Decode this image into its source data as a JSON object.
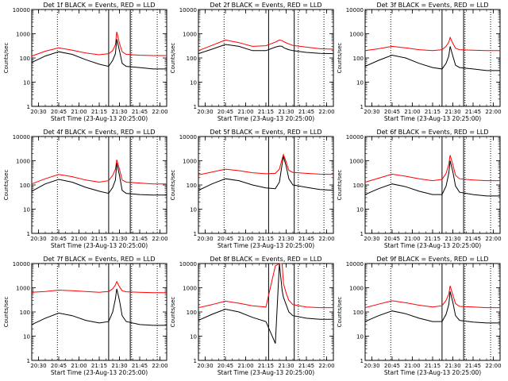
{
  "figure": {
    "x_ticks": [
      "20:30",
      "20:45",
      "21:00",
      "21:15",
      "21:30",
      "21:45",
      "22:00"
    ],
    "y_ticks": [
      "1",
      "10",
      "100",
      "1000",
      "10000"
    ],
    "x_label": "Start Time (23-Aug-13 20:25:00)",
    "y_label": "Counts/sec"
  },
  "colors": {
    "events": "#000000",
    "lld": "#ff0000",
    "background": "#ffffff"
  },
  "chart_data": [
    {
      "type": "line",
      "title": "Det 1f BLACK = Events, RED = LLD",
      "xlabel": "Start Time (23-Aug-13 20:25:00)",
      "ylabel": "Counts/sec",
      "yscale": "log",
      "ylim": [
        1,
        10000
      ],
      "x_range": [
        "20:25",
        "22:05"
      ],
      "markers": {
        "solid": [
          "21:22",
          "21:38"
        ],
        "dotted": [
          "20:44",
          "21:39",
          "21:58"
        ]
      },
      "series": [
        {
          "name": "BLACK = Events",
          "color": "#000000",
          "x": [
            "20:25",
            "20:35",
            "20:45",
            "20:55",
            "21:05",
            "21:15",
            "21:22",
            "21:25",
            "21:27",
            "21:28",
            "21:30",
            "21:32",
            "21:35",
            "21:45",
            "21:55",
            "22:05"
          ],
          "values": [
            65,
            120,
            180,
            140,
            85,
            55,
            45,
            80,
            150,
            600,
            200,
            60,
            45,
            40,
            35,
            35
          ]
        },
        {
          "name": "RED = LLD",
          "color": "#ff0000",
          "x": [
            "20:25",
            "20:35",
            "20:45",
            "20:55",
            "21:05",
            "21:15",
            "21:22",
            "21:25",
            "21:27",
            "21:28",
            "21:30",
            "21:32",
            "21:35",
            "21:45",
            "21:55",
            "22:05"
          ],
          "values": [
            120,
            190,
            260,
            210,
            160,
            135,
            150,
            200,
            350,
            1200,
            400,
            180,
            140,
            130,
            125,
            125
          ]
        }
      ]
    },
    {
      "type": "line",
      "title": "Det 2f BLACK = Events, RED = LLD",
      "xlabel": "Start Time (23-Aug-13 20:25:00)",
      "ylabel": "Counts/sec",
      "yscale": "log",
      "ylim": [
        1,
        10000
      ],
      "x_range": [
        "20:25",
        "22:05"
      ],
      "markers": {
        "solid": [
          "21:17",
          "21:36"
        ],
        "dotted": [
          "20:44",
          "21:39",
          "21:58"
        ]
      },
      "series": [
        {
          "name": "BLACK = Events",
          "color": "#000000",
          "x": [
            "20:25",
            "20:35",
            "20:45",
            "20:55",
            "21:05",
            "21:15",
            "21:22",
            "21:25",
            "21:27",
            "21:28",
            "21:30",
            "21:32",
            "21:35",
            "21:45",
            "21:55",
            "22:05"
          ],
          "values": [
            150,
            230,
            360,
            300,
            200,
            200,
            280,
            310,
            300,
            270,
            240,
            220,
            200,
            170,
            155,
            150
          ]
        },
        {
          "name": "RED = LLD",
          "color": "#ff0000",
          "x": [
            "20:25",
            "20:35",
            "20:45",
            "20:55",
            "21:05",
            "21:15",
            "21:22",
            "21:25",
            "21:27",
            "21:28",
            "21:30",
            "21:32",
            "21:35",
            "21:45",
            "21:55",
            "22:05"
          ],
          "values": [
            200,
            330,
            550,
            430,
            300,
            320,
            450,
            550,
            520,
            480,
            420,
            380,
            330,
            280,
            240,
            230
          ]
        }
      ]
    },
    {
      "type": "line",
      "title": "Det 3f BLACK = Events, RED = LLD",
      "xlabel": "Start Time (23-Aug-13 20:25:00)",
      "ylabel": "Counts/sec",
      "yscale": "log",
      "ylim": [
        1,
        10000
      ],
      "x_range": [
        "20:25",
        "22:05"
      ],
      "markers": {
        "solid": [
          "21:22",
          "21:38"
        ],
        "dotted": [
          "20:44",
          "21:39",
          "21:58"
        ]
      },
      "series": [
        {
          "name": "BLACK = Events",
          "color": "#000000",
          "x": [
            "20:25",
            "20:35",
            "20:45",
            "20:55",
            "21:05",
            "21:15",
            "21:22",
            "21:25",
            "21:27",
            "21:28",
            "21:30",
            "21:32",
            "21:35",
            "21:45",
            "21:55",
            "22:05"
          ],
          "values": [
            45,
            80,
            130,
            100,
            60,
            40,
            35,
            60,
            120,
            300,
            120,
            50,
            40,
            35,
            30,
            30
          ]
        },
        {
          "name": "RED = LLD",
          "color": "#ff0000",
          "x": [
            "20:25",
            "20:35",
            "20:45",
            "20:55",
            "21:05",
            "21:15",
            "21:22",
            "21:25",
            "21:27",
            "21:28",
            "21:30",
            "21:32",
            "21:35",
            "21:45",
            "21:55",
            "22:05"
          ],
          "values": [
            200,
            240,
            300,
            260,
            220,
            200,
            220,
            300,
            450,
            700,
            400,
            250,
            220,
            210,
            200,
            200
          ]
        }
      ]
    },
    {
      "type": "line",
      "title": "Det 4f BLACK = Events, RED = LLD",
      "xlabel": "Start Time (23-Aug-13 20:25:00)",
      "ylabel": "Counts/sec",
      "yscale": "log",
      "ylim": [
        1,
        10000
      ],
      "x_range": [
        "20:25",
        "22:05"
      ],
      "markers": {
        "solid": [
          "21:22",
          "21:38"
        ],
        "dotted": [
          "20:44",
          "21:39",
          "21:58"
        ]
      },
      "series": [
        {
          "name": "BLACK = Events",
          "color": "#000000",
          "x": [
            "20:25",
            "20:35",
            "20:45",
            "20:55",
            "21:05",
            "21:15",
            "21:22",
            "21:25",
            "21:27",
            "21:28",
            "21:30",
            "21:32",
            "21:35",
            "21:45",
            "21:55",
            "22:05"
          ],
          "values": [
            55,
            110,
            170,
            130,
            80,
            55,
            45,
            80,
            160,
            800,
            250,
            60,
            45,
            40,
            38,
            38
          ]
        },
        {
          "name": "RED = LLD",
          "color": "#ff0000",
          "x": [
            "20:25",
            "20:35",
            "20:45",
            "20:55",
            "21:05",
            "21:15",
            "21:22",
            "21:25",
            "21:27",
            "21:28",
            "21:30",
            "21:32",
            "21:35",
            "21:45",
            "21:55",
            "22:05"
          ],
          "values": [
            110,
            180,
            270,
            220,
            160,
            130,
            150,
            250,
            450,
            1100,
            450,
            160,
            130,
            120,
            110,
            110
          ]
        }
      ]
    },
    {
      "type": "line",
      "title": "Det 5f BLACK = Events, RED = LLD",
      "xlabel": "Start Time (23-Aug-13 20:25:00)",
      "ylabel": "Counts/sec",
      "yscale": "log",
      "ylim": [
        1,
        10000
      ],
      "x_range": [
        "20:25",
        "22:05"
      ],
      "markers": {
        "solid": [
          "21:17",
          "21:36"
        ],
        "dotted": [
          "20:44",
          "21:39",
          "21:58"
        ]
      },
      "series": [
        {
          "name": "BLACK = Events",
          "color": "#000000",
          "x": [
            "20:25",
            "20:35",
            "20:45",
            "20:55",
            "21:05",
            "21:15",
            "21:22",
            "21:25",
            "21:27",
            "21:28",
            "21:30",
            "21:32",
            "21:35",
            "21:45",
            "21:55",
            "22:05"
          ],
          "values": [
            60,
            110,
            180,
            150,
            100,
            75,
            70,
            130,
            700,
            1500,
            600,
            180,
            100,
            80,
            65,
            60
          ]
        },
        {
          "name": "RED = LLD",
          "color": "#ff0000",
          "x": [
            "20:25",
            "20:35",
            "20:45",
            "20:55",
            "21:05",
            "21:15",
            "21:22",
            "21:25",
            "21:27",
            "21:28",
            "21:30",
            "21:32",
            "21:35",
            "21:45",
            "21:55",
            "22:05"
          ],
          "values": [
            260,
            340,
            450,
            390,
            320,
            290,
            300,
            450,
            1200,
            1800,
            900,
            400,
            330,
            300,
            280,
            270
          ]
        }
      ]
    },
    {
      "type": "line",
      "title": "Det 6f BLACK = Events, RED = LLD",
      "xlabel": "Start Time (23-Aug-13 20:25:00)",
      "ylabel": "Counts/sec",
      "yscale": "log",
      "ylim": [
        1,
        10000
      ],
      "x_range": [
        "20:25",
        "22:05"
      ],
      "markers": {
        "solid": [
          "21:22",
          "21:38"
        ],
        "dotted": [
          "20:44",
          "21:39",
          "21:58"
        ]
      },
      "series": [
        {
          "name": "BLACK = Events",
          "color": "#000000",
          "x": [
            "20:25",
            "20:35",
            "20:45",
            "20:55",
            "21:05",
            "21:15",
            "21:22",
            "21:25",
            "21:27",
            "21:28",
            "21:30",
            "21:32",
            "21:35",
            "21:45",
            "21:55",
            "22:05"
          ],
          "values": [
            40,
            70,
            110,
            85,
            55,
            40,
            40,
            90,
            300,
            1000,
            350,
            90,
            50,
            40,
            35,
            35
          ]
        },
        {
          "name": "RED = LLD",
          "color": "#ff0000",
          "x": [
            "20:25",
            "20:35",
            "20:45",
            "20:55",
            "21:05",
            "21:15",
            "21:22",
            "21:25",
            "21:27",
            "21:28",
            "21:30",
            "21:32",
            "21:35",
            "21:45",
            "21:55",
            "22:05"
          ],
          "values": [
            130,
            190,
            280,
            230,
            180,
            150,
            170,
            300,
            700,
            1700,
            700,
            250,
            180,
            160,
            150,
            150
          ]
        }
      ]
    },
    {
      "type": "line",
      "title": "Det 7f BLACK = Events, RED = LLD",
      "xlabel": "Start Time (23-Aug-13 20:25:00)",
      "ylabel": "Counts/sec",
      "yscale": "log",
      "ylim": [
        1,
        10000
      ],
      "x_range": [
        "20:25",
        "22:05"
      ],
      "markers": {
        "solid": [
          "21:22",
          "21:38"
        ],
        "dotted": [
          "20:44",
          "21:39",
          "21:58"
        ]
      },
      "series": [
        {
          "name": "BLACK = Events",
          "color": "#000000",
          "x": [
            "20:25",
            "20:35",
            "20:45",
            "20:55",
            "21:05",
            "21:15",
            "21:22",
            "21:25",
            "21:27",
            "21:28",
            "21:30",
            "21:32",
            "21:35",
            "21:45",
            "21:55",
            "22:05"
          ],
          "values": [
            30,
            55,
            90,
            70,
            45,
            35,
            40,
            100,
            350,
            900,
            300,
            70,
            40,
            30,
            28,
            28
          ]
        },
        {
          "name": "RED = LLD",
          "color": "#ff0000",
          "x": [
            "20:25",
            "20:35",
            "20:45",
            "20:55",
            "21:05",
            "21:15",
            "21:22",
            "21:25",
            "21:27",
            "21:28",
            "21:30",
            "21:32",
            "21:35",
            "21:45",
            "21:55",
            "22:05"
          ],
          "values": [
            650,
            700,
            800,
            750,
            700,
            650,
            700,
            900,
            1300,
            1800,
            1100,
            750,
            680,
            650,
            620,
            620
          ]
        }
      ]
    },
    {
      "type": "line",
      "title": "Det 8f BLACK = Events, RED = LLD",
      "xlabel": "Start Time (23-Aug-13 20:25:00)",
      "ylabel": "Counts/sec",
      "yscale": "log",
      "ylim": [
        1,
        10000
      ],
      "x_range": [
        "20:25",
        "22:05"
      ],
      "markers": {
        "solid": [
          "21:17",
          "21:36"
        ],
        "dotted": [
          "20:44",
          "21:39",
          "21:58"
        ]
      },
      "series": [
        {
          "name": "BLACK = Events",
          "color": "#000000",
          "x": [
            "20:25",
            "20:35",
            "20:45",
            "20:55",
            "21:05",
            "21:15",
            "21:22",
            "21:25",
            "21:27",
            "21:28",
            "21:30",
            "21:32",
            "21:35",
            "21:45",
            "21:55",
            "22:05"
          ],
          "values": [
            45,
            80,
            130,
            100,
            60,
            40,
            5,
            10000,
            800,
            400,
            200,
            100,
            70,
            55,
            50,
            50
          ]
        },
        {
          "name": "RED = LLD",
          "color": "#ff0000",
          "x": [
            "20:25",
            "20:35",
            "20:45",
            "20:55",
            "21:05",
            "21:15",
            "21:22",
            "21:25",
            "21:27",
            "21:28",
            "21:30",
            "21:32",
            "21:35",
            "21:45",
            "21:55",
            "22:05"
          ],
          "values": [
            150,
            200,
            280,
            230,
            180,
            160,
            8000,
            10000,
            10000,
            1500,
            600,
            300,
            200,
            160,
            150,
            150
          ]
        }
      ]
    },
    {
      "type": "line",
      "title": "Det 9f BLACK = Events, RED = LLD",
      "xlabel": "Start Time (23-Aug-13 20:25:00)",
      "ylabel": "Counts/sec",
      "yscale": "log",
      "ylim": [
        1,
        10000
      ],
      "x_range": [
        "20:25",
        "22:05"
      ],
      "markers": {
        "solid": [
          "21:22",
          "21:38"
        ],
        "dotted": [
          "20:44",
          "21:39",
          "21:58"
        ]
      },
      "series": [
        {
          "name": "BLACK = Events",
          "color": "#000000",
          "x": [
            "20:25",
            "20:35",
            "20:45",
            "20:55",
            "21:05",
            "21:15",
            "21:22",
            "21:25",
            "21:27",
            "21:28",
            "21:30",
            "21:32",
            "21:35",
            "21:45",
            "21:55",
            "22:05"
          ],
          "values": [
            40,
            70,
            110,
            85,
            55,
            40,
            40,
            80,
            200,
            700,
            250,
            70,
            45,
            38,
            35,
            35
          ]
        },
        {
          "name": "RED = LLD",
          "color": "#ff0000",
          "x": [
            "20:25",
            "20:35",
            "20:45",
            "20:55",
            "21:05",
            "21:15",
            "21:22",
            "21:25",
            "21:27",
            "21:28",
            "21:30",
            "21:32",
            "21:35",
            "21:45",
            "21:55",
            "22:05"
          ],
          "values": [
            150,
            210,
            290,
            240,
            190,
            160,
            180,
            300,
            550,
            1200,
            500,
            220,
            170,
            160,
            150,
            150
          ]
        }
      ]
    }
  ]
}
